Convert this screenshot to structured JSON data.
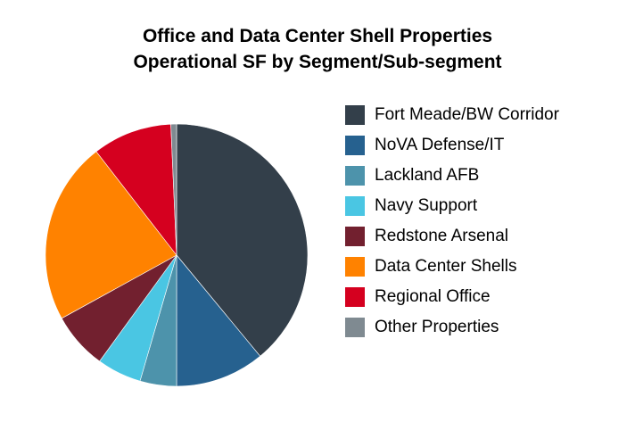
{
  "chart_data": {
    "type": "pie",
    "title": [
      "Office and Data Center Shell Properties",
      "Operational SF by Segment/Sub-segment"
    ],
    "legend_position": "right",
    "series": [
      {
        "name": "Fort Meade/BW Corridor",
        "value": 39.0,
        "color": "#333f4a"
      },
      {
        "name": "NoVA Defense/IT",
        "value": 11.0,
        "color": "#26618f"
      },
      {
        "name": "Lackland AFB",
        "value": 4.5,
        "color": "#4d93ab"
      },
      {
        "name": "Navy Support",
        "value": 5.5,
        "color": "#4ac6e3"
      },
      {
        "name": "Redstone Arsenal",
        "value": 7.0,
        "color": "#72202f"
      },
      {
        "name": "Data Center Shells",
        "value": 22.5,
        "color": "#ff8200"
      },
      {
        "name": "Regional Office",
        "value": 9.8,
        "color": "#d5001f"
      },
      {
        "name": "Other Properties",
        "value": 0.7,
        "color": "#7f8a91"
      }
    ]
  }
}
